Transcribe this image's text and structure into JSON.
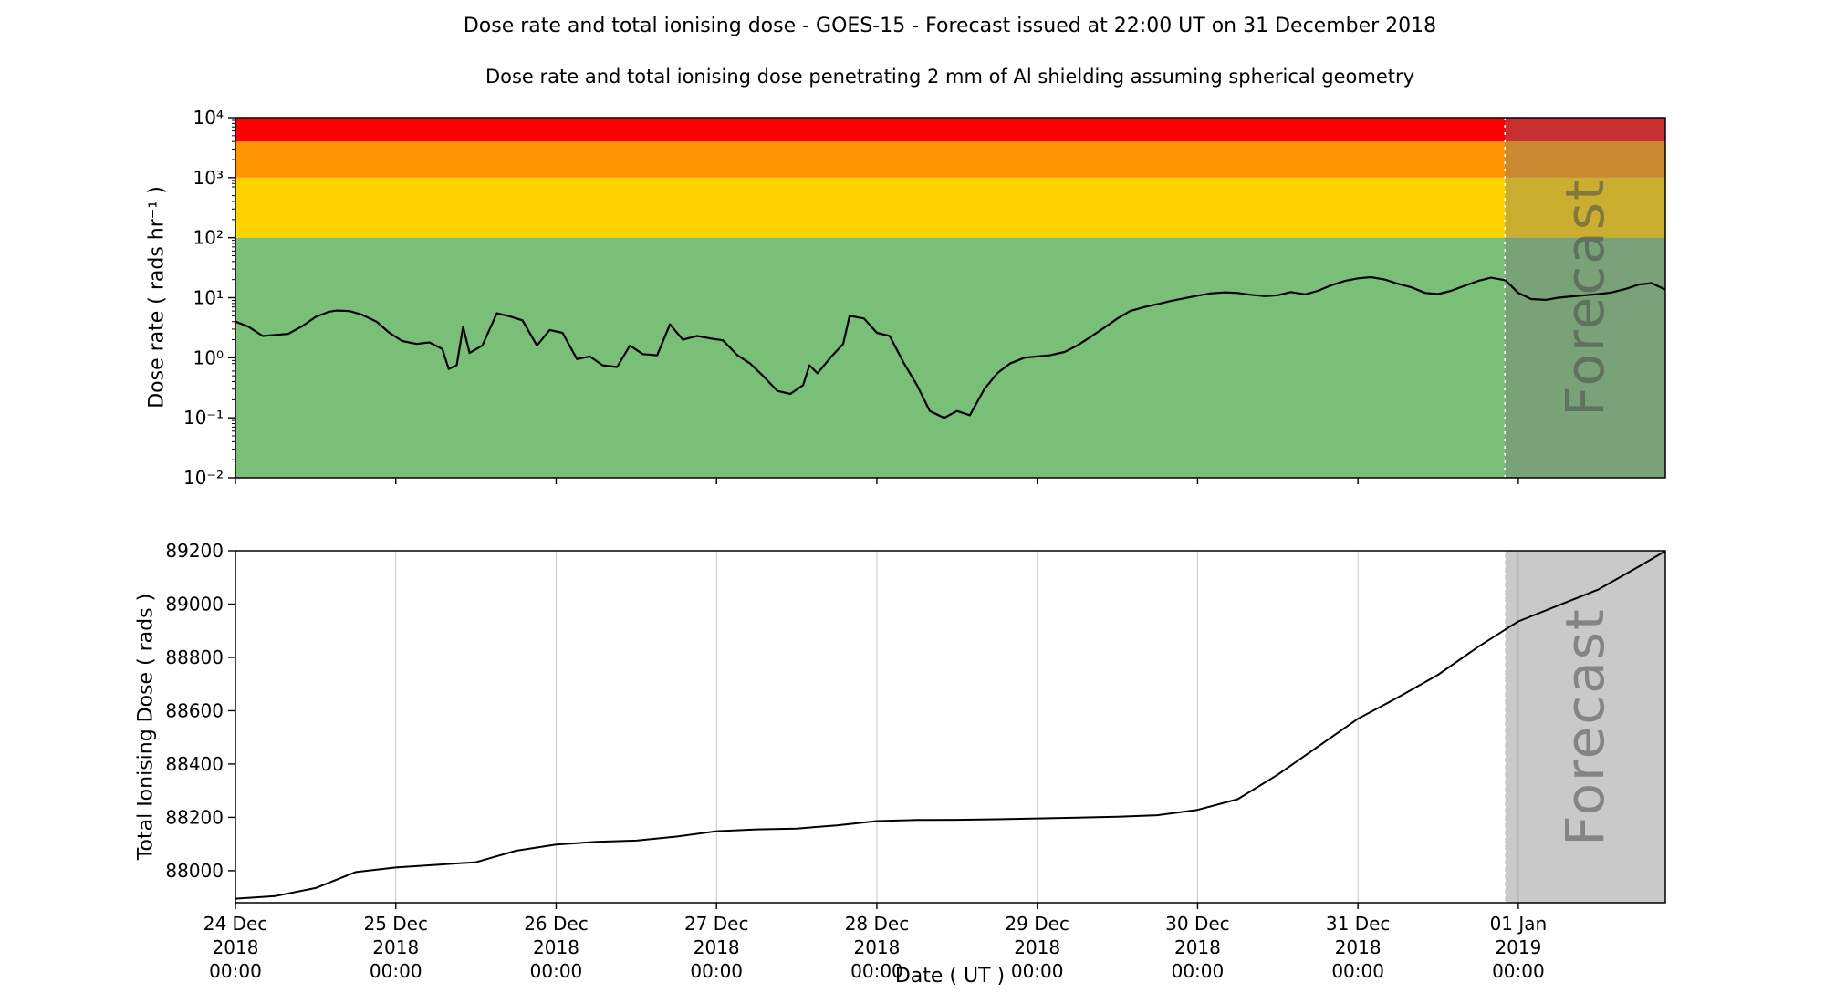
{
  "title": "Dose rate and total ionising dose - GOES-15 - Forecast issued at 22:00 UT on 31 December 2018",
  "subtitle": "Dose rate and total ionising dose penetrating 2 mm of Al shielding assuming spherical geometry",
  "xlabel": "Date ( UT )",
  "forecast_label": "Forecast",
  "colors": {
    "line": "#000000",
    "grid": "#c8c8c8",
    "forecast_overlay": "rgba(120,120,120,0.40)",
    "forecast_boundary": "#ffffff",
    "watermark": "#4b4b4b",
    "band_red": "#fe0000",
    "band_orange": "#ff9500",
    "band_yellow": "#ffd300",
    "band_green": "#7abf78"
  },
  "x_axis": {
    "start_label": "24 Dec 2018 00:00",
    "end_day": 8.9167,
    "forecast_start_day": 7.9167,
    "ticks": [
      {
        "day": 0,
        "line1": "24 Dec",
        "line2": "2018",
        "line3": "00:00"
      },
      {
        "day": 1,
        "line1": "25 Dec",
        "line2": "2018",
        "line3": "00:00"
      },
      {
        "day": 2,
        "line1": "26 Dec",
        "line2": "2018",
        "line3": "00:00"
      },
      {
        "day": 3,
        "line1": "27 Dec",
        "line2": "2018",
        "line3": "00:00"
      },
      {
        "day": 4,
        "line1": "28 Dec",
        "line2": "2018",
        "line3": "00:00"
      },
      {
        "day": 5,
        "line1": "29 Dec",
        "line2": "2018",
        "line3": "00:00"
      },
      {
        "day": 6,
        "line1": "30 Dec",
        "line2": "2018",
        "line3": "00:00"
      },
      {
        "day": 7,
        "line1": "31 Dec",
        "line2": "2018",
        "line3": "00:00"
      },
      {
        "day": 8,
        "line1": "01 Jan",
        "line2": "2019",
        "line3": "00:00"
      }
    ]
  },
  "chart_data": [
    {
      "type": "line",
      "name": "dose_rate",
      "ylabel": "Dose rate ( rads hr⁻¹ )",
      "yscale": "log",
      "ylim": [
        0.01,
        10000
      ],
      "line_color": "#000000",
      "yticks": [
        {
          "value": 10000,
          "label": "10⁴"
        },
        {
          "value": 1000,
          "label": "10³"
        },
        {
          "value": 100,
          "label": "10²"
        },
        {
          "value": 10,
          "label": "10¹"
        },
        {
          "value": 1,
          "label": "10⁰"
        },
        {
          "value": 0.1,
          "label": "10⁻¹"
        },
        {
          "value": 0.01,
          "label": "10⁻²"
        }
      ],
      "bands": [
        {
          "name": "green",
          "from": 0.01,
          "to": 100,
          "color": "#7abf78"
        },
        {
          "name": "yellow",
          "from": 100,
          "to": 1000,
          "color": "#ffd300"
        },
        {
          "name": "orange",
          "from": 1000,
          "to": 4000,
          "color": "#ff9500"
        },
        {
          "name": "red",
          "from": 4000,
          "to": 10000,
          "color": "#fe0000"
        }
      ],
      "points": [
        [
          0.0,
          4.0
        ],
        [
          0.08,
          3.3
        ],
        [
          0.17,
          2.3
        ],
        [
          0.25,
          2.4
        ],
        [
          0.33,
          2.5
        ],
        [
          0.42,
          3.4
        ],
        [
          0.5,
          4.8
        ],
        [
          0.58,
          5.8
        ],
        [
          0.63,
          6.1
        ],
        [
          0.71,
          6.0
        ],
        [
          0.79,
          5.2
        ],
        [
          0.88,
          4.0
        ],
        [
          0.96,
          2.6
        ],
        [
          1.04,
          1.9
        ],
        [
          1.13,
          1.7
        ],
        [
          1.21,
          1.8
        ],
        [
          1.29,
          1.4
        ],
        [
          1.33,
          0.65
        ],
        [
          1.38,
          0.75
        ],
        [
          1.42,
          3.3
        ],
        [
          1.46,
          1.2
        ],
        [
          1.54,
          1.6
        ],
        [
          1.63,
          5.5
        ],
        [
          1.71,
          4.9
        ],
        [
          1.79,
          4.2
        ],
        [
          1.88,
          1.6
        ],
        [
          1.96,
          2.9
        ],
        [
          2.04,
          2.6
        ],
        [
          2.13,
          0.95
        ],
        [
          2.21,
          1.05
        ],
        [
          2.29,
          0.75
        ],
        [
          2.38,
          0.7
        ],
        [
          2.46,
          1.6
        ],
        [
          2.54,
          1.15
        ],
        [
          2.63,
          1.1
        ],
        [
          2.71,
          3.6
        ],
        [
          2.79,
          2.0
        ],
        [
          2.88,
          2.3
        ],
        [
          2.96,
          2.1
        ],
        [
          3.04,
          1.95
        ],
        [
          3.13,
          1.1
        ],
        [
          3.21,
          0.8
        ],
        [
          3.29,
          0.5
        ],
        [
          3.38,
          0.28
        ],
        [
          3.46,
          0.25
        ],
        [
          3.54,
          0.35
        ],
        [
          3.58,
          0.75
        ],
        [
          3.63,
          0.55
        ],
        [
          3.71,
          1.0
        ],
        [
          3.79,
          1.7
        ],
        [
          3.83,
          5.0
        ],
        [
          3.92,
          4.5
        ],
        [
          4.0,
          2.6
        ],
        [
          4.08,
          2.3
        ],
        [
          4.17,
          0.8
        ],
        [
          4.25,
          0.35
        ],
        [
          4.33,
          0.13
        ],
        [
          4.42,
          0.1
        ],
        [
          4.5,
          0.13
        ],
        [
          4.58,
          0.11
        ],
        [
          4.67,
          0.3
        ],
        [
          4.75,
          0.55
        ],
        [
          4.83,
          0.8
        ],
        [
          4.92,
          1.0
        ],
        [
          5.0,
          1.05
        ],
        [
          5.08,
          1.1
        ],
        [
          5.17,
          1.25
        ],
        [
          5.25,
          1.6
        ],
        [
          5.33,
          2.2
        ],
        [
          5.42,
          3.2
        ],
        [
          5.5,
          4.5
        ],
        [
          5.58,
          6.0
        ],
        [
          5.67,
          7.0
        ],
        [
          5.75,
          7.8
        ],
        [
          5.83,
          8.8
        ],
        [
          5.92,
          9.8
        ],
        [
          6.0,
          10.8
        ],
        [
          6.08,
          11.8
        ],
        [
          6.17,
          12.3
        ],
        [
          6.25,
          12.0
        ],
        [
          6.33,
          11.2
        ],
        [
          6.42,
          10.6
        ],
        [
          6.5,
          11.0
        ],
        [
          6.58,
          12.4
        ],
        [
          6.67,
          11.4
        ],
        [
          6.75,
          13.0
        ],
        [
          6.83,
          16.0
        ],
        [
          6.92,
          19.0
        ],
        [
          7.0,
          21.0
        ],
        [
          7.08,
          22.0
        ],
        [
          7.17,
          20.0
        ],
        [
          7.25,
          17.0
        ],
        [
          7.33,
          15.0
        ],
        [
          7.42,
          12.0
        ],
        [
          7.5,
          11.5
        ],
        [
          7.58,
          13.0
        ],
        [
          7.67,
          16.0
        ],
        [
          7.75,
          19.0
        ],
        [
          7.83,
          21.5
        ],
        [
          7.92,
          19.5
        ],
        [
          8.0,
          12.0
        ],
        [
          8.08,
          9.5
        ],
        [
          8.17,
          9.2
        ],
        [
          8.25,
          10.0
        ],
        [
          8.33,
          10.5
        ],
        [
          8.42,
          11.0
        ],
        [
          8.5,
          11.5
        ],
        [
          8.58,
          12.2
        ],
        [
          8.67,
          14.0
        ],
        [
          8.75,
          16.5
        ],
        [
          8.83,
          17.5
        ],
        [
          8.92,
          13.5
        ]
      ]
    },
    {
      "type": "line",
      "name": "total_dose",
      "ylabel": "Total Ionising Dose ( rads )",
      "yscale": "linear",
      "ylim": [
        87880,
        89200
      ],
      "line_color": "#000000",
      "grid": "vertical",
      "yticks": [
        {
          "value": 88000,
          "label": "88000"
        },
        {
          "value": 88200,
          "label": "88200"
        },
        {
          "value": 88400,
          "label": "88400"
        },
        {
          "value": 88600,
          "label": "88600"
        },
        {
          "value": 88800,
          "label": "88800"
        },
        {
          "value": 89000,
          "label": "89000"
        },
        {
          "value": 89200,
          "label": "89200"
        }
      ],
      "points": [
        [
          0.0,
          87895
        ],
        [
          0.25,
          87905
        ],
        [
          0.5,
          87935
        ],
        [
          0.75,
          87995
        ],
        [
          1.0,
          88012
        ],
        [
          1.25,
          88022
        ],
        [
          1.5,
          88032
        ],
        [
          1.75,
          88075
        ],
        [
          2.0,
          88098
        ],
        [
          2.25,
          88108
        ],
        [
          2.5,
          88113
        ],
        [
          2.75,
          88128
        ],
        [
          3.0,
          88148
        ],
        [
          3.25,
          88155
        ],
        [
          3.5,
          88158
        ],
        [
          3.75,
          88170
        ],
        [
          4.0,
          88186
        ],
        [
          4.25,
          88190
        ],
        [
          4.5,
          88191
        ],
        [
          4.75,
          88193
        ],
        [
          5.0,
          88196
        ],
        [
          5.25,
          88199
        ],
        [
          5.5,
          88202
        ],
        [
          5.75,
          88208
        ],
        [
          6.0,
          88228
        ],
        [
          6.25,
          88268
        ],
        [
          6.5,
          88360
        ],
        [
          6.75,
          88465
        ],
        [
          7.0,
          88570
        ],
        [
          7.25,
          88650
        ],
        [
          7.5,
          88735
        ],
        [
          7.75,
          88840
        ],
        [
          7.92,
          88905
        ],
        [
          8.0,
          88935
        ],
        [
          8.25,
          88995
        ],
        [
          8.5,
          89055
        ],
        [
          8.75,
          89140
        ],
        [
          8.92,
          89200
        ]
      ]
    }
  ]
}
